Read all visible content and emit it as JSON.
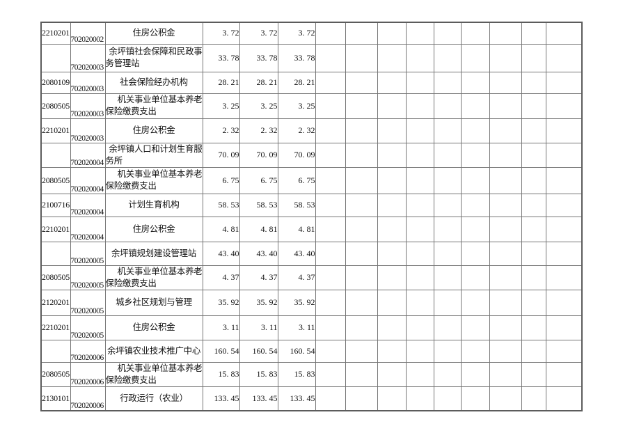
{
  "colors": {
    "background": "#ffffff",
    "text": "#111111",
    "grid_border": "#757575",
    "outer_border": "#5c5c5c"
  },
  "table": {
    "empty_columns": 9,
    "rows": [
      {
        "code1": "2210201",
        "code2": "702020002",
        "desc": "住房公积金",
        "desc_lines": [
          "住房公积金"
        ],
        "values": [
          "3. 72",
          "3. 72",
          "3. 72"
        ]
      },
      {
        "code1": "",
        "code2": "702020003",
        "desc": "余坪镇社会保障和民政事务管理站",
        "desc_lines": [
          "余坪镇社会保障和民政事",
          "务管理站"
        ],
        "values": [
          "33. 78",
          "33. 78",
          "33. 78"
        ]
      },
      {
        "code1": "2080109",
        "code2": "702020003",
        "desc": "社会保险经办机构",
        "desc_lines": [
          "社会保险经办机构"
        ],
        "values": [
          "28. 21",
          "28. 21",
          "28. 21"
        ]
      },
      {
        "code1": "2080505",
        "code2": "702020003",
        "desc": "机关事业单位基本养老保险缴费支出",
        "desc_lines": [
          "机关事业单位基本养老",
          "保险缴费支出"
        ],
        "values": [
          "3. 25",
          "3. 25",
          "3. 25"
        ]
      },
      {
        "code1": "2210201",
        "code2": "702020003",
        "desc": "住房公积金",
        "desc_lines": [
          "住房公积金"
        ],
        "values": [
          "2. 32",
          "2. 32",
          "2. 32"
        ]
      },
      {
        "code1": "",
        "code2": "702020004",
        "desc": "余坪镇人口和计划生育服务所",
        "desc_lines": [
          "余坪镇人口和计划生育服",
          "务所"
        ],
        "values": [
          "70. 09",
          "70. 09",
          "70. 09"
        ]
      },
      {
        "code1": "2080505",
        "code2": "702020004",
        "desc": "机关事业单位基本养老保险缴费支出",
        "desc_lines": [
          "机关事业单位基本养老",
          "保险缴费支出"
        ],
        "values": [
          "6. 75",
          "6. 75",
          "6. 75"
        ]
      },
      {
        "code1": "2100716",
        "code2": "702020004",
        "desc": "计划生育机构",
        "desc_lines": [
          "计划生育机构"
        ],
        "values": [
          "58. 53",
          "58. 53",
          "58. 53"
        ]
      },
      {
        "code1": "2210201",
        "code2": "702020004",
        "desc": "住房公积金",
        "desc_lines": [
          "住房公积金"
        ],
        "values": [
          "4. 81",
          "4. 81",
          "4. 81"
        ]
      },
      {
        "code1": "",
        "code2": "702020005",
        "desc": "余坪镇规划建设管理站",
        "desc_lines": [
          "余坪镇规划建设管理站"
        ],
        "values": [
          "43. 40",
          "43. 40",
          "43. 40"
        ]
      },
      {
        "code1": "2080505",
        "code2": "702020005",
        "desc": "机关事业单位基本养老保险缴费支出",
        "desc_lines": [
          "机关事业单位基本养老",
          "保险缴费支出"
        ],
        "values": [
          "4. 37",
          "4. 37",
          "4. 37"
        ]
      },
      {
        "code1": "2120201",
        "code2": "702020005",
        "desc": "城乡社区规划与管理",
        "desc_lines": [
          "城乡社区规划与管理"
        ],
        "values": [
          "35. 92",
          "35. 92",
          "35. 92"
        ]
      },
      {
        "code1": "2210201",
        "code2": "702020005",
        "desc": "住房公积金",
        "desc_lines": [
          "住房公积金"
        ],
        "values": [
          "3. 11",
          "3. 11",
          "3. 11"
        ]
      },
      {
        "code1": "",
        "code2": "702020006",
        "desc": "余坪镇农业技术推广中心",
        "desc_lines": [
          "余坪镇农业技术推广中心"
        ],
        "values": [
          "160. 54",
          "160. 54",
          "160. 54"
        ]
      },
      {
        "code1": "2080505",
        "code2": "702020006",
        "desc": "机关事业单位基本养老保险缴费支出",
        "desc_lines": [
          "机关事业单位基本养老",
          "保险缴费支出"
        ],
        "values": [
          "15. 83",
          "15. 83",
          "15. 83"
        ]
      },
      {
        "code1": "2130101",
        "code2": "702020006",
        "desc": "行政运行（农业）",
        "desc_lines": [
          "行政运行（农业）"
        ],
        "values": [
          "133. 45",
          "133. 45",
          "133. 45"
        ]
      }
    ]
  }
}
